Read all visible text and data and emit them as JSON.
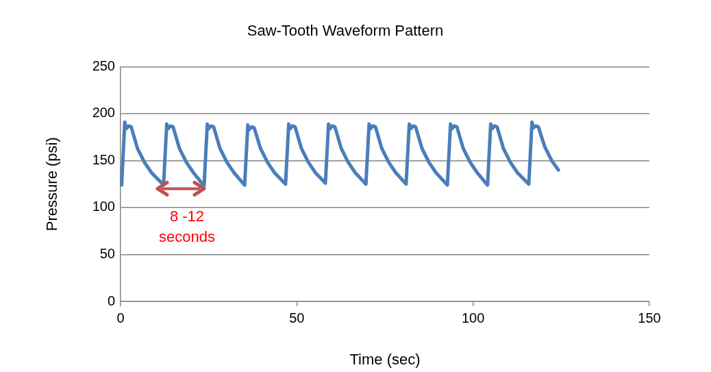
{
  "chart_data": {
    "type": "line",
    "title": "Saw-Tooth Waveform Pattern",
    "xlabel": "Time (sec)",
    "ylabel": "Pressure (psi)",
    "xlim": [
      0,
      150
    ],
    "xticks": [
      0,
      50,
      100,
      150
    ],
    "ylim": [
      0,
      250
    ],
    "yticks": [
      0,
      50,
      100,
      150,
      200,
      250
    ],
    "grid": "y",
    "legend": false,
    "marker": "none",
    "line_style": "solid",
    "series": [
      {
        "color": "#4a7ebb",
        "x": [
          0.3,
          1.2,
          1.6,
          2.3,
          3,
          4.8,
          6.8,
          8.8,
          12.2,
          13.1,
          13.5,
          14.2,
          14.9,
          16.7,
          18.7,
          20.7,
          23.7,
          24.6,
          25.0,
          25.7,
          26.4,
          28.2,
          30.2,
          32.2,
          35.2,
          36.1,
          36.5,
          37.2,
          37.9,
          39.7,
          41.7,
          43.7,
          46.8,
          47.7,
          48.1,
          48.8,
          49.5,
          51.3,
          53.3,
          55.3,
          58.1,
          59.0,
          59.4,
          60.1,
          60.8,
          62.6,
          64.6,
          66.6,
          69.6,
          70.5,
          70.9,
          71.6,
          72.3,
          74.1,
          76.1,
          78.1,
          81.0,
          81.9,
          82.3,
          83.0,
          83.7,
          85.5,
          87.5,
          89.5,
          92.7,
          93.6,
          94.0,
          94.7,
          95.4,
          97.2,
          99.2,
          101.2,
          104.1,
          105.0,
          105.4,
          106.1,
          106.8,
          108.6,
          110.6,
          112.6,
          115.8,
          116.7,
          117.1,
          117.8,
          118.5,
          120.3,
          122.3,
          124.2
        ],
        "values": [
          124,
          191,
          184,
          187,
          186,
          163,
          148,
          137,
          124,
          189,
          184,
          187,
          186,
          163,
          148,
          137,
          123,
          189,
          184,
          187,
          186,
          163,
          148,
          137,
          124,
          188,
          183,
          186,
          185,
          163,
          148,
          137,
          125,
          189,
          184,
          187,
          186,
          163,
          148,
          137,
          126,
          189,
          184,
          187,
          186,
          163,
          148,
          137,
          125,
          189,
          184,
          187,
          186,
          163,
          148,
          137,
          125,
          189,
          184,
          187,
          186,
          163,
          148,
          137,
          124,
          189,
          184,
          187,
          186,
          163,
          148,
          137,
          124,
          189,
          184,
          187,
          186,
          163,
          148,
          137,
          125,
          191,
          185,
          187,
          186,
          165,
          150,
          140
        ]
      }
    ],
    "annotations": [
      {
        "text": "8 -12 seconds",
        "x": 23.7,
        "y": 123
      }
    ]
  }
}
